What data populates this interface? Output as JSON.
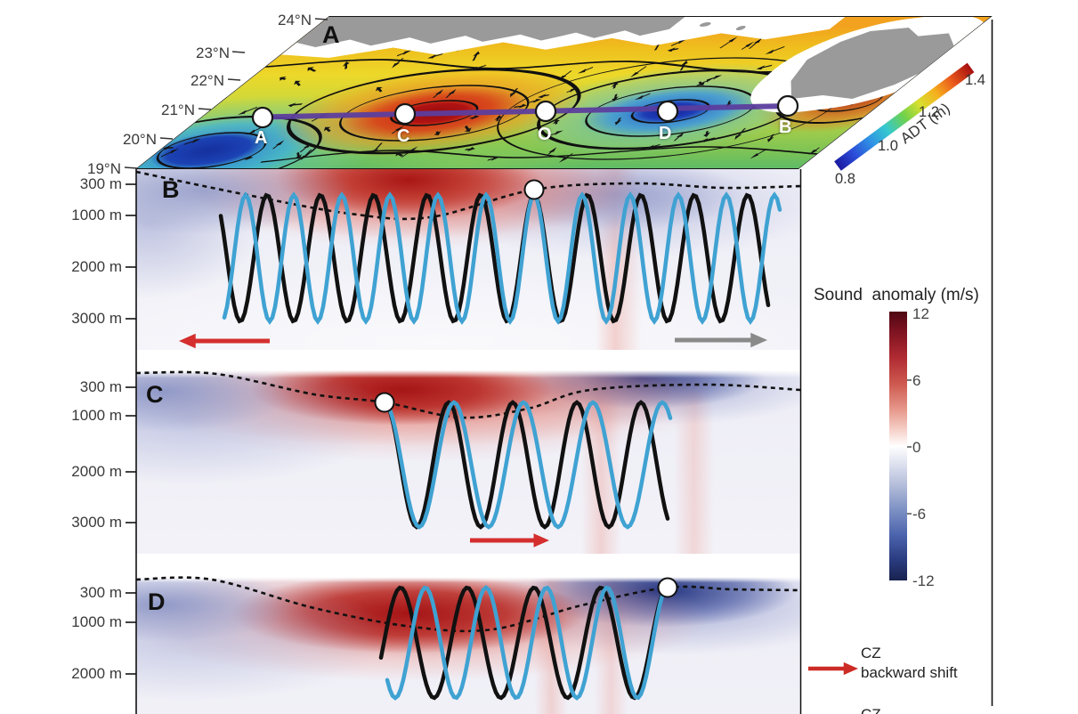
{
  "panel_a": {
    "label": "A",
    "lat_labels": [
      "24°N",
      "23°N",
      "22°N",
      "21°N",
      "20°N",
      "19°N"
    ],
    "station_labels": [
      "A",
      "C",
      "O",
      "D",
      "B"
    ],
    "adt_colorbar": {
      "title": "ADT (m)",
      "ticks": [
        "0.8",
        "1.0",
        "1.2",
        "1.4"
      ]
    }
  },
  "panel_b": {
    "label": "B",
    "depth_labels": [
      "300 m",
      "1000 m",
      "2000 m",
      "3000 m"
    ]
  },
  "panel_c": {
    "label": "C",
    "depth_labels": [
      "300 m",
      "1000 m",
      "2000 m",
      "3000 m"
    ]
  },
  "panel_d": {
    "label": "D",
    "depth_labels": [
      "300 m",
      "1000 m",
      "2000 m"
    ]
  },
  "sound_colorbar": {
    "title": "Sound  anomaly (m/s)",
    "ticks": [
      "12",
      "6",
      "0",
      "-6",
      "-12"
    ]
  },
  "legend": {
    "item1": {
      "label_line1": "CZ",
      "label_line2": "backward shift"
    },
    "item2": {
      "label_line1": "CZ"
    }
  },
  "colors": {
    "warm_eddy_core": "#B01313",
    "cold_eddy_core": "#14249A",
    "ray_black": "#111111",
    "ray_blue": "#3FA2D2",
    "cz_red_arrow": "#CD2B25",
    "cz_gray_arrow": "#8A8A8A",
    "transect_purple": "#5C3E9E",
    "land_gray": "#9A9A9A"
  },
  "chart_data": [
    {
      "id": "A",
      "type": "heatmap",
      "title": "Plan-view sea-surface ADT map with surface current vectors (slanted 3D view)",
      "y_tick_labels": [
        "24°N",
        "23°N",
        "22°N",
        "21°N",
        "20°N",
        "19°N"
      ],
      "colorbar": {
        "label": "ADT (m)",
        "range": [
          0.8,
          1.4
        ],
        "tick_values": [
          0.8,
          1.0,
          1.2,
          1.4
        ],
        "palette": "jet blue-to-red"
      },
      "transect": {
        "stations": [
          "A",
          "C",
          "O",
          "D",
          "B"
        ],
        "approx_latitude": "21°N",
        "line_color": "purple"
      },
      "features": [
        {
          "name": "warm anticyclonic eddy",
          "at_station": "C",
          "approx_adt_m": 1.4
        },
        {
          "name": "cold cyclonic eddy",
          "at_station": "D",
          "approx_adt_m": 0.9
        },
        {
          "name": "cold eddy at southwest corner",
          "approx_adt_m": 0.85
        },
        {
          "name": "gray land along northern edge and northeast island"
        }
      ]
    },
    {
      "id": "B",
      "type": "heatmap",
      "title": "Vertical sound-speed anomaly section along A-B with two acoustic ray paths from mid-section source O",
      "depth_tick_labels": [
        "300 m",
        "1000 m",
        "2000 m",
        "3000 m"
      ],
      "colorbar": {
        "label": "Sound  anomaly (m/s)",
        "range": [
          -12,
          12
        ],
        "tick_values": [
          12,
          6,
          0,
          -6,
          -12
        ],
        "palette": "dark red - white - dark blue"
      },
      "source_marker": {
        "at_station": "O",
        "on": "sound-channel axis (black dashed line)"
      },
      "rays": [
        {
          "color": "black"
        },
        {
          "color": "light blue"
        }
      ],
      "anomaly_features": [
        {
          "sign": "positive",
          "location": "upper ~1000 m above warm eddy (west half)",
          "approx_max_m_s": 12
        },
        {
          "sign": "negative",
          "location": "upper ~1000 m above cold eddy (east half)",
          "approx_min_m_s": -6
        }
      ],
      "annotations": [
        {
          "arrow_color": "red",
          "direction": "left",
          "meaning": "CZ backward shift"
        },
        {
          "arrow_color": "gray",
          "direction": "right"
        }
      ]
    },
    {
      "id": "C",
      "type": "heatmap",
      "title": "Sound-speed anomaly section with source at station C (over warm eddy), rays propagating eastward",
      "depth_tick_labels": [
        "300 m",
        "1000 m",
        "2000 m",
        "3000 m"
      ],
      "colorbar": {
        "label": "Sound  anomaly (m/s)",
        "range": [
          -12,
          12
        ],
        "tick_values": [
          12,
          6,
          0,
          -6,
          -12
        ]
      },
      "source_marker": {
        "at_station": "C"
      },
      "rays": [
        {
          "color": "black"
        },
        {
          "color": "light blue"
        }
      ],
      "annotations": [
        {
          "arrow_color": "red",
          "direction": "right",
          "meaning": "CZ backward shift"
        }
      ]
    },
    {
      "id": "D",
      "type": "heatmap",
      "title": "Sound-speed anomaly section with source at station D (over cold eddy), rays propagating westward (panel cut at bottom)",
      "depth_tick_labels": [
        "300 m",
        "1000 m",
        "2000 m"
      ],
      "colorbar": {
        "label": "Sound  anomaly (m/s)",
        "range": [
          -12,
          12
        ],
        "tick_values": [
          12,
          6,
          0,
          -6,
          -12
        ]
      },
      "source_marker": {
        "at_station": "D"
      },
      "rays": [
        {
          "color": "black"
        },
        {
          "color": "light blue"
        }
      ]
    }
  ]
}
